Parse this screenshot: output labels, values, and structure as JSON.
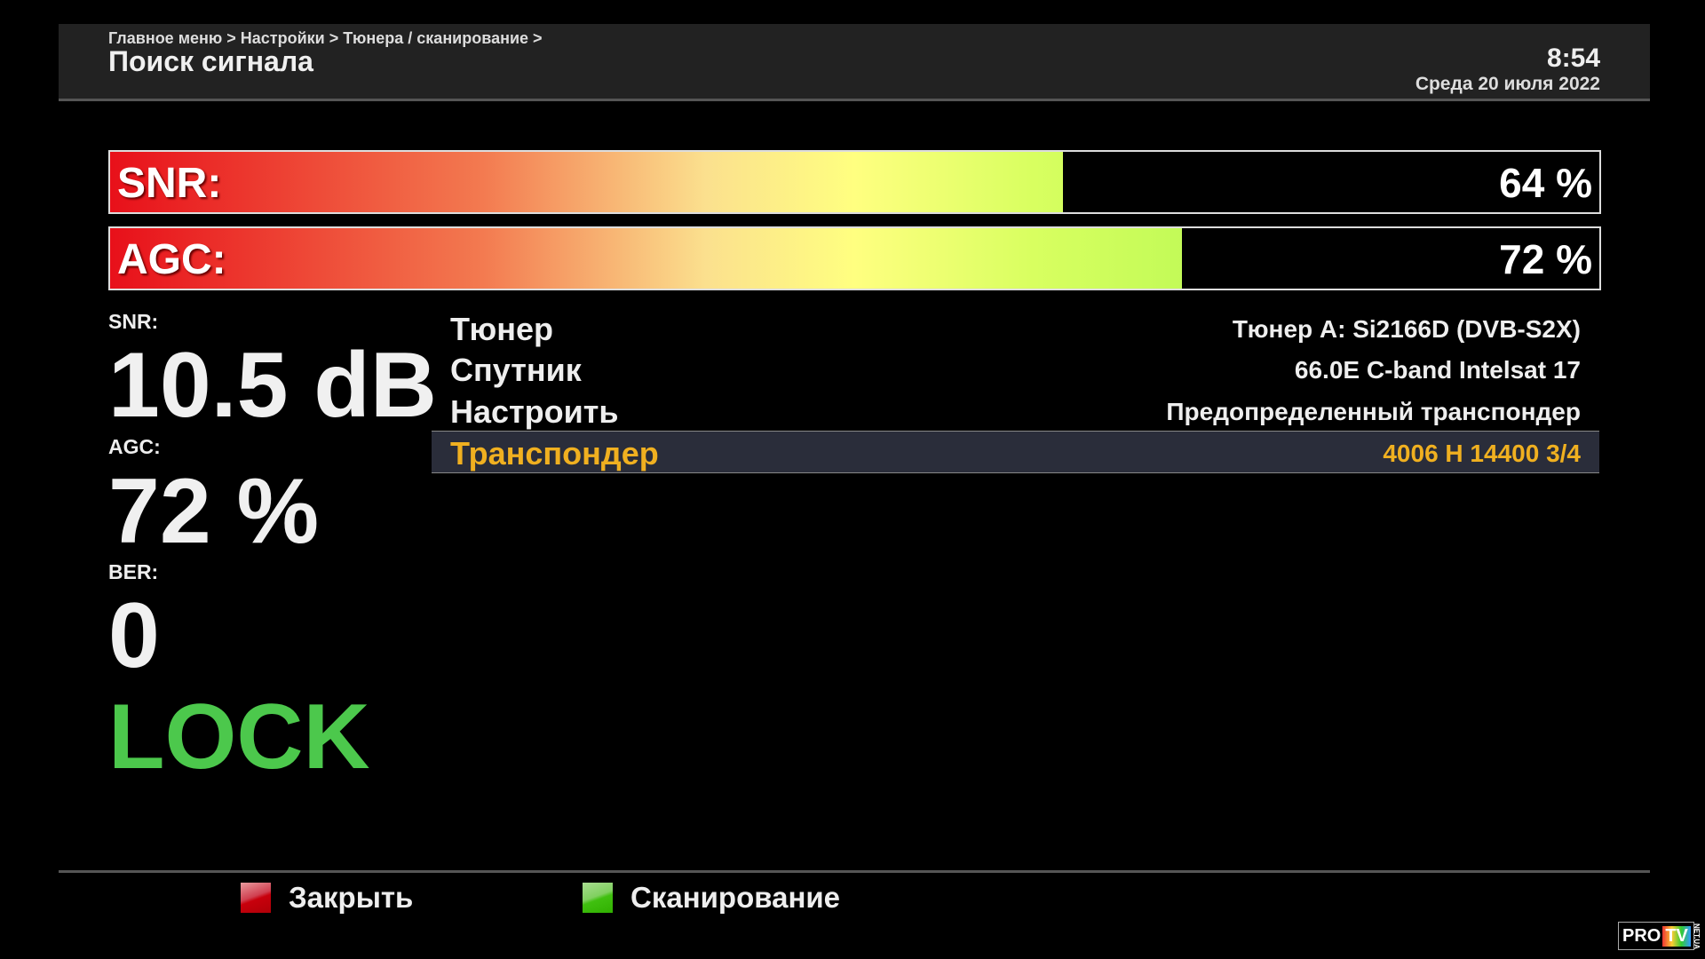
{
  "header": {
    "breadcrumb": "Главное меню > Настройки > Тюнера / сканирование >",
    "title": "Поиск сигнала",
    "time": "8:54",
    "date": "Среда 20 июля 2022"
  },
  "bars": [
    {
      "label": "SNR:",
      "value_text": "64 %",
      "percent": 64
    },
    {
      "label": "AGC:",
      "value_text": "72 %",
      "percent": 72
    }
  ],
  "stats": {
    "snr_label": "SNR:",
    "snr_value": "10.5 dB",
    "agc_label": "AGC:",
    "agc_value": "72 %",
    "ber_label": "BER:",
    "ber_value": "0",
    "lock": "LOCK"
  },
  "info": [
    {
      "label": "Тюнер",
      "value": "Тюнер A: Si2166D (DVB-S2X)"
    },
    {
      "label": "Спутник",
      "value": "66.0E C-band Intelsat 17"
    },
    {
      "label": "Настроить",
      "value": "Предопределенный транспондер"
    },
    {
      "label": "Транспондер",
      "value": "4006 H 14400 3/4",
      "selected": true
    }
  ],
  "footer": {
    "red_label": "Закрыть",
    "green_label": "Сканирование"
  },
  "colors": {
    "lock": "#4cc84c",
    "highlight": "#f0b020",
    "red_key": "#d0101a",
    "green_key": "#50d020"
  },
  "watermark": "PRO TV NET.UA"
}
